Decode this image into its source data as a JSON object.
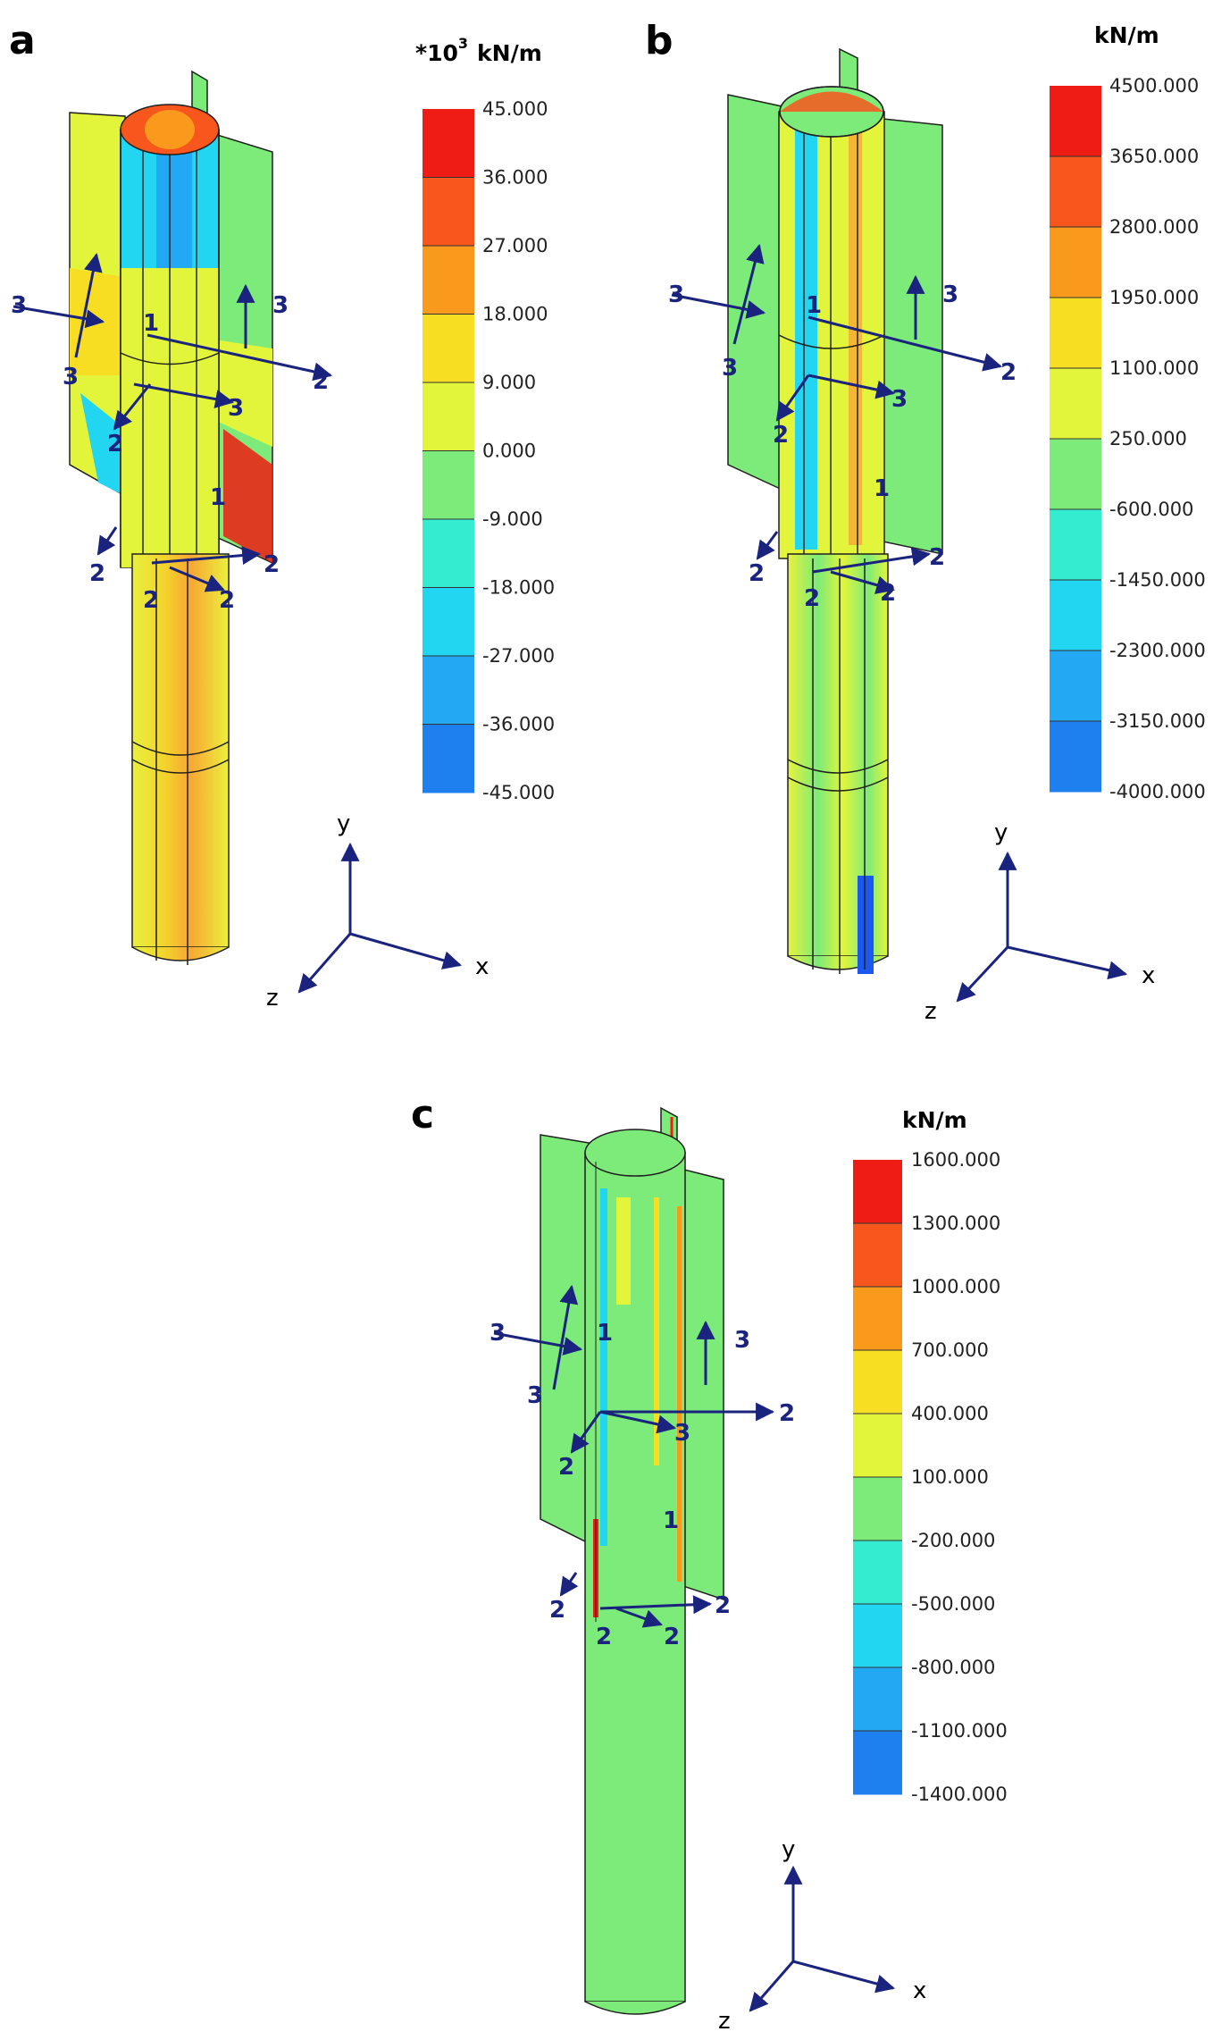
{
  "panels": [
    {
      "id": "a",
      "label": "a",
      "unit_prefix": "*10",
      "unit_exp": "3",
      "unit_suffix": "kN/m",
      "ticks": [
        "45.000",
        "36.000",
        "27.000",
        "18.000",
        "9.000",
        "0.000",
        "-9.000",
        "-18.000",
        "-27.000",
        "-36.000",
        "-45.000"
      ],
      "local_axes": [
        "3",
        "2",
        "1",
        "3",
        "3",
        "2",
        "2",
        "3",
        "2",
        "2",
        "1",
        "2",
        "2",
        "2",
        "2",
        "2"
      ],
      "global_axes": {
        "y": "y",
        "x": "x",
        "z": "z"
      }
    },
    {
      "id": "b",
      "label": "b",
      "unit_prefix": "",
      "unit_exp": "",
      "unit_suffix": "kN/m",
      "ticks": [
        "4500.000",
        "3650.000",
        "2800.000",
        "1950.000",
        "1100.000",
        "250.000",
        "-600.000",
        "-1450.000",
        "-2300.000",
        "-3150.000",
        "-4000.000"
      ],
      "local_axes": [
        "3",
        "2",
        "1",
        "3",
        "3",
        "2",
        "2",
        "3",
        "2",
        "2",
        "1",
        "2",
        "2",
        "2",
        "2",
        "2"
      ],
      "global_axes": {
        "y": "y",
        "x": "x",
        "z": "z"
      }
    },
    {
      "id": "c",
      "label": "c",
      "unit_prefix": "",
      "unit_exp": "",
      "unit_suffix": "kN/m",
      "ticks": [
        "1600.000",
        "1300.000",
        "1000.000",
        "700.000",
        "400.000",
        "100.000",
        "-200.000",
        "-500.000",
        "-800.000",
        "-1100.000",
        "-1400.000"
      ],
      "local_axes": [
        "3",
        "2",
        "1",
        "3",
        "3",
        "2",
        "2",
        "3",
        "2",
        "2",
        "1",
        "2",
        "2",
        "2",
        "2",
        "2"
      ],
      "global_axes": {
        "y": "y",
        "x": "x",
        "z": "z"
      }
    }
  ],
  "colors": {
    "scale": [
      "#ee1c14",
      "#f7561c",
      "#fa9a1c",
      "#f8de22",
      "#e3f53a",
      "#7deb79",
      "#34ecd0",
      "#22d5f0",
      "#23a8f3",
      "#1e80ef",
      "#1b58f0"
    ],
    "axis": "#1a237e",
    "outline": "#1f1f1f"
  }
}
